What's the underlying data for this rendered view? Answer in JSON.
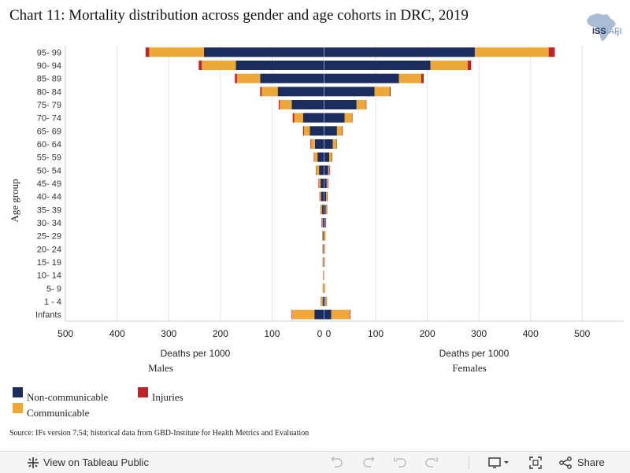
{
  "title": "Chart 11: Mortality distribution across gender and age cohorts in DRC, 2019",
  "logo": {
    "text_main": "ISS",
    "text_sep": "|",
    "text_sub": "AFI"
  },
  "chart_data": {
    "type": "bar",
    "orientation": "horizontal-stacked-population-pyramid",
    "ylabel": "Age group",
    "categories": [
      "95- 99",
      "90- 94",
      "85- 89",
      "80- 84",
      "75- 79",
      "70- 74",
      "65- 69",
      "60- 64",
      "55- 59",
      "50- 54",
      "45- 49",
      "40- 44",
      "35- 39",
      "30- 34",
      "25- 29",
      "20- 24",
      "15- 19",
      "10- 14",
      "5- 9",
      "1 - 4",
      "Infants"
    ],
    "panels": [
      {
        "label": "Males",
        "xlabel": "Deaths per 1000",
        "xlim": [
          0,
          500
        ],
        "ticks": [
          "500",
          "400",
          "300",
          "200",
          "100",
          "0"
        ],
        "series": [
          {
            "name": "Non-communicable",
            "values": [
              232,
              170,
              123,
              89,
              62,
              40,
              27,
              17,
              12,
              9,
              6,
              5,
              3,
              2,
              0.8,
              0.7,
              0.6,
              0.4,
              0.5,
              2,
              18
            ]
          },
          {
            "name": "Communicable",
            "values": [
              106,
              66,
              45,
              31,
              23,
              17,
              11,
              7,
              6,
              5,
              3,
              2,
              2,
              1,
              1,
              0.8,
              0.8,
              0.5,
              1,
              3,
              43
            ]
          },
          {
            "name": "Injuries",
            "values": [
              7,
              6,
              4,
              3,
              2,
              3,
              2,
              1.5,
              1,
              1,
              1,
              1,
              1,
              1,
              0.7,
              0.5,
              0.5,
              0.3,
              0.3,
              0.6,
              1
            ]
          }
        ]
      },
      {
        "label": "Females",
        "xlabel": "Deaths per 1000",
        "xlim": [
          0,
          500
        ],
        "ticks": [
          "0",
          "100",
          "200",
          "300",
          "400",
          "500"
        ],
        "series": [
          {
            "name": "Non-communicable",
            "values": [
              292,
              206,
              145,
              98,
              63,
              40,
              25,
              17,
              10,
              8,
              5,
              4,
              3,
              2,
              0.8,
              0.6,
              0.5,
              0.3,
              0.5,
              2,
              14
            ]
          },
          {
            "name": "Communicable",
            "values": [
              143,
              72,
              43,
              29,
              18,
              14,
              10,
              7,
              5,
              2.5,
              2,
              2,
              2,
              1,
              1.3,
              0.7,
              0.7,
              0.4,
              1,
              3,
              36
            ]
          },
          {
            "name": "Injuries",
            "values": [
              12,
              7,
              5,
              2,
              1,
              1,
              1,
              1,
              1,
              1,
              1,
              1,
              1,
              1,
              0.5,
              0.4,
              0.4,
              0.2,
              0.3,
              0.5,
              1
            ]
          }
        ]
      }
    ],
    "colors": {
      "Non-communicable": "#1a2d5e",
      "Communicable": "#eea837",
      "Injuries": "#c0222a"
    },
    "grid": true,
    "legend": "bottom-left"
  },
  "legend": {
    "items": [
      {
        "label": "Non-communicable",
        "color": "#1a2d5e"
      },
      {
        "label": "Injuries",
        "color": "#c0222a"
      },
      {
        "label": "Communicable",
        "color": "#eea837"
      }
    ]
  },
  "source": "Source: IFs version 7.54; historical data from GBD-Institute for Health Metrics and Evaluation",
  "toolbar": {
    "view_label": "View on Tableau Public",
    "share_label": "Share",
    "icons": [
      "tableau-logo-icon",
      "undo-icon",
      "redo-icon",
      "revert-icon",
      "forward-icon",
      "download-icon",
      "fullscreen-icon",
      "share-icon"
    ]
  }
}
